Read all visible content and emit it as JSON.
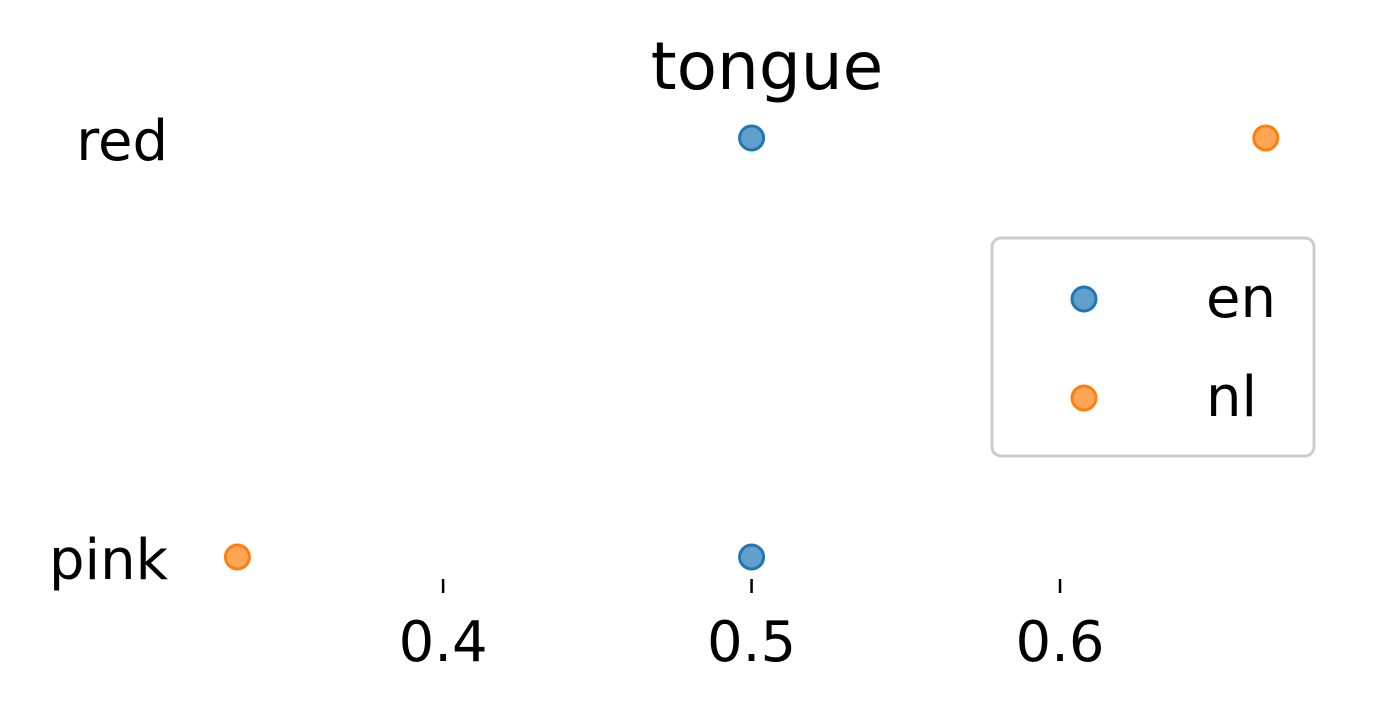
{
  "chart_data": {
    "type": "scatter",
    "title": "tongue",
    "xlabel": "",
    "ylabel": "",
    "categories": [
      "red",
      "pink"
    ],
    "xlim": [
      0.3335,
      0.6765
    ],
    "xticks": [
      {
        "value": 0.4,
        "label": "0.4"
      },
      {
        "value": 0.5,
        "label": "0.5"
      },
      {
        "value": 0.6,
        "label": "0.6"
      }
    ],
    "grid": false,
    "legend_position": "right",
    "series": [
      {
        "name": "en",
        "color": "#1f77b4",
        "points": [
          {
            "category": "red",
            "x": 0.5
          },
          {
            "category": "pink",
            "x": 0.5
          }
        ]
      },
      {
        "name": "nl",
        "color": "#ff7f0e",
        "points": [
          {
            "category": "red",
            "x": 0.6667
          },
          {
            "category": "pink",
            "x": 0.3333
          }
        ]
      }
    ]
  }
}
